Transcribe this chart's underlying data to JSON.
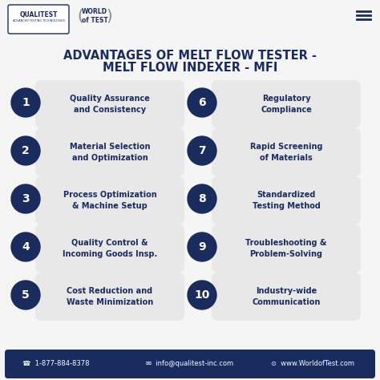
{
  "title_line1": "ADVANTAGES OF MELT FLOW TESTER -",
  "title_line2": "MELT FLOW INDEXER - MFI",
  "background_color": "#f5f5f5",
  "dark_navy": "#1a2b5e",
  "pill_bg": "#e8e8e8",
  "footer_bg": "#1a2b5e",
  "footer_text_color": "#ffffff",
  "items_left": [
    {
      "num": "1",
      "text": "Quality Assurance\nand Consistency"
    },
    {
      "num": "2",
      "text": "Material Selection\nand Optimization"
    },
    {
      "num": "3",
      "text": "Process Optimization\n& Machine Setup"
    },
    {
      "num": "4",
      "text": "Quality Control &\nIncoming Goods Insp."
    },
    {
      "num": "5",
      "text": "Cost Reduction and\nWaste Minimization"
    }
  ],
  "items_right": [
    {
      "num": "6",
      "text": "Regulatory\nCompliance"
    },
    {
      "num": "7",
      "text": "Rapid Screening\nof Materials"
    },
    {
      "num": "8",
      "text": "Standardized\nTesting Method"
    },
    {
      "num": "9",
      "text": "Troubleshooting &\nProblem-Solving"
    },
    {
      "num": "10",
      "text": "Industry-wide\nCommunication"
    }
  ],
  "footer_items": [
    "☎  1-877-884-8378",
    "✉  info@qualitest-inc.com",
    "⊙  www.WorldofTest.com"
  ],
  "qualitest_logo": "QUALITEST",
  "qualitest_sub": "ADVANCED TESTING TECHNOLOGIES",
  "world_of_test": "WORLD\nof TEST"
}
